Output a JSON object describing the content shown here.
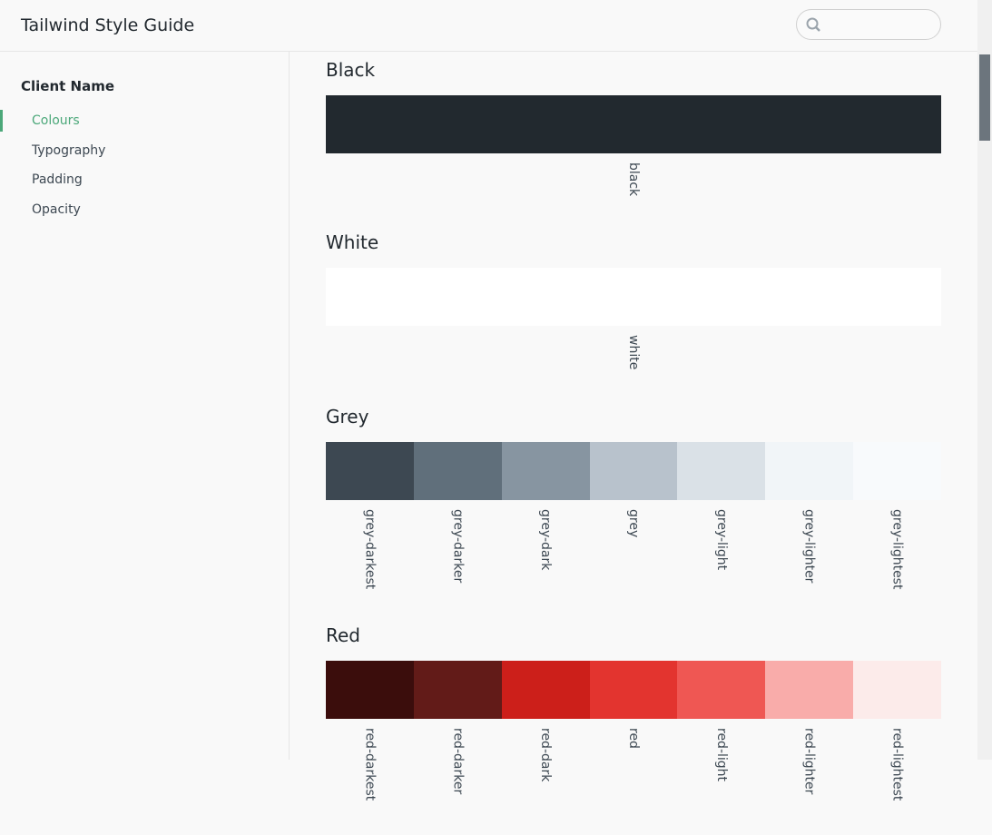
{
  "header": {
    "title": "Tailwind Style Guide"
  },
  "sidebar": {
    "client": "Client Name",
    "nav": [
      "Colours",
      "Typography",
      "Padding",
      "Opacity"
    ],
    "active": 0
  },
  "sections": [
    {
      "title": "Black",
      "swatches": [
        {
          "name": "black",
          "color": "#22292f"
        }
      ]
    },
    {
      "title": "White",
      "swatches": [
        {
          "name": "white",
          "color": "#ffffff"
        }
      ]
    },
    {
      "title": "Grey",
      "swatches": [
        {
          "name": "grey-darkest",
          "color": "#3d4852"
        },
        {
          "name": "grey-darker",
          "color": "#606f7b"
        },
        {
          "name": "grey-dark",
          "color": "#8795a1"
        },
        {
          "name": "grey",
          "color": "#b8c2cc"
        },
        {
          "name": "grey-light",
          "color": "#dae1e7"
        },
        {
          "name": "grey-lighter",
          "color": "#f1f5f8"
        },
        {
          "name": "grey-lightest",
          "color": "#f8fafc"
        }
      ]
    },
    {
      "title": "Red",
      "swatches": [
        {
          "name": "red-darkest",
          "color": "#3b0d0c"
        },
        {
          "name": "red-darker",
          "color": "#621b18"
        },
        {
          "name": "red-dark",
          "color": "#cc1f1a"
        },
        {
          "name": "red",
          "color": "#e3342f"
        },
        {
          "name": "red-light",
          "color": "#ef5753"
        },
        {
          "name": "red-lighter",
          "color": "#f9acaa"
        },
        {
          "name": "red-lightest",
          "color": "#fcebea"
        }
      ]
    }
  ]
}
